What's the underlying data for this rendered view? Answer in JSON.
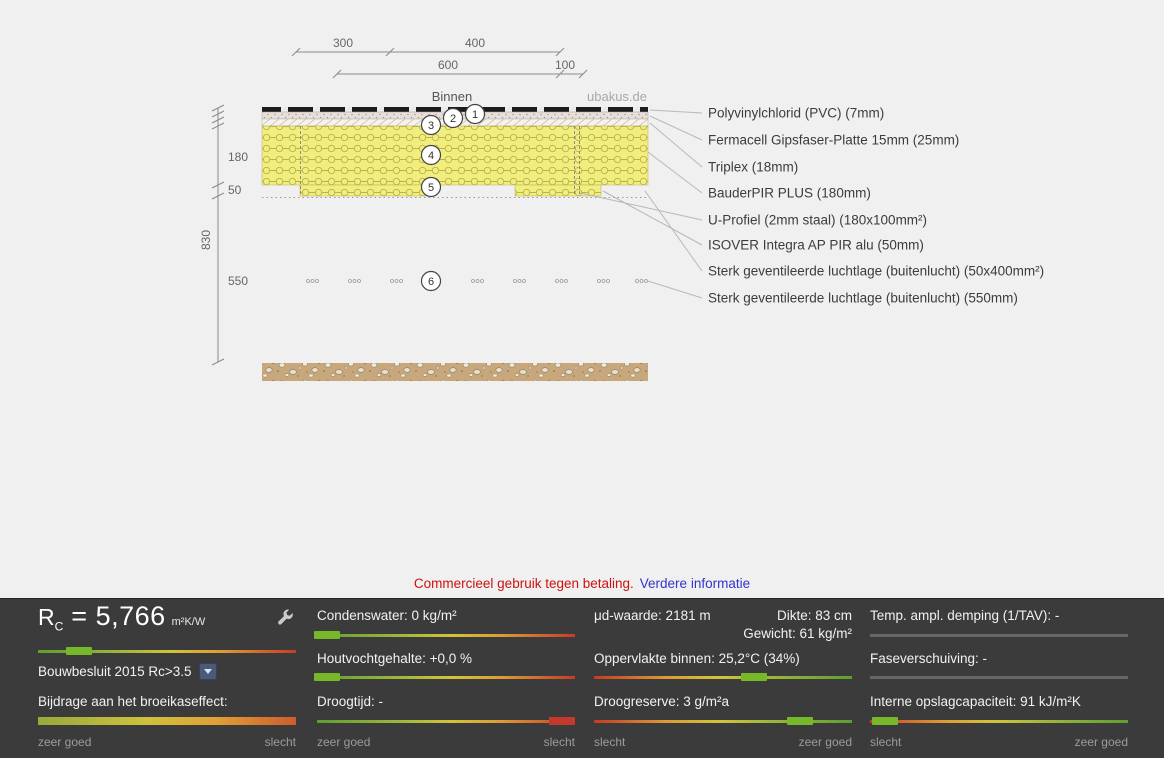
{
  "notice": {
    "text": "Commercieel gebruik tegen betaling.",
    "link": "Verdere informatie"
  },
  "diagram": {
    "watermark": "ubakus.de",
    "binnen": "Binnen",
    "dims_top": [
      "300",
      "400",
      "600",
      "100"
    ],
    "dims_left": [
      "180",
      "50",
      "830",
      "550"
    ],
    "numbers": [
      "1",
      "2",
      "3",
      "4",
      "5",
      "6"
    ],
    "layers": [
      "Polyvinylchlorid (PVC) (7mm)",
      "Fermacell Gipsfaser-Platte 15mm (25mm)",
      "Triplex (18mm)",
      "BauderPIR PLUS (180mm)",
      "U-Profiel (2mm staal) (180x100mm²)",
      "ISOVER Integra AP PIR alu (50mm)",
      "Sterk geventileerde luchtlage (buitenlucht) (50x400mm²)",
      "Sterk geventileerde luchtlage (buitenlucht) (550mm)"
    ]
  },
  "panel": {
    "rc": {
      "symbol": "R",
      "sub": "C",
      "value": "= 5,766",
      "unit": "m²K/W"
    },
    "bouwbesluit_label": "Bouwbesluit 2015 Rc>3.5",
    "labels": {
      "broeikas": "Bijdrage aan het broeikaseffect:",
      "condenswater": "Condenswater: 0 kg/m²",
      "houtvocht": "Houtvochtgehalte: +0,0 %",
      "droogtijd": "Droogtijd: -",
      "mud": "μd-waarde: 2181 m",
      "dikte": "Dikte: 83 cm",
      "gewicht": "Gewicht: 61 kg/m²",
      "oppervlakte": "Oppervlakte binnen: 25,2°C (34%)",
      "droogreserve": "Droogreserve: 3 g/m²a",
      "tempampl": "Temp. ampl. demping (1/TAV): -",
      "fase": "Faseverschuiving: -",
      "opslag": "Interne opslagcapaciteit: 91 kJ/m²K"
    },
    "scale": {
      "zeer_goed": "zeer goed",
      "slecht": "slecht"
    },
    "bars": {
      "rc": {
        "pos": 0.16,
        "color": "#76b82a"
      },
      "broeikas": {
        "pos": null
      },
      "condenswater": {
        "pos": 0.04,
        "color": "#76b82a"
      },
      "houtvocht": {
        "pos": 0.04,
        "color": "#76b82a"
      },
      "droogtijd": {
        "pos": 0.95,
        "color": "#c43a2a"
      },
      "oppervlakte": {
        "pos": 0.62,
        "color": "#76b82a"
      },
      "droogreserve": {
        "pos": 0.8,
        "color": "#76b82a"
      },
      "tempampl": {
        "pos": null
      },
      "fase": {
        "pos": null
      },
      "opslag": {
        "pos": 0.06,
        "color": "#76b82a"
      }
    },
    "colors": {
      "good": "#76b82a",
      "bad": "#c63b28",
      "accent": "#4a5a78"
    }
  }
}
